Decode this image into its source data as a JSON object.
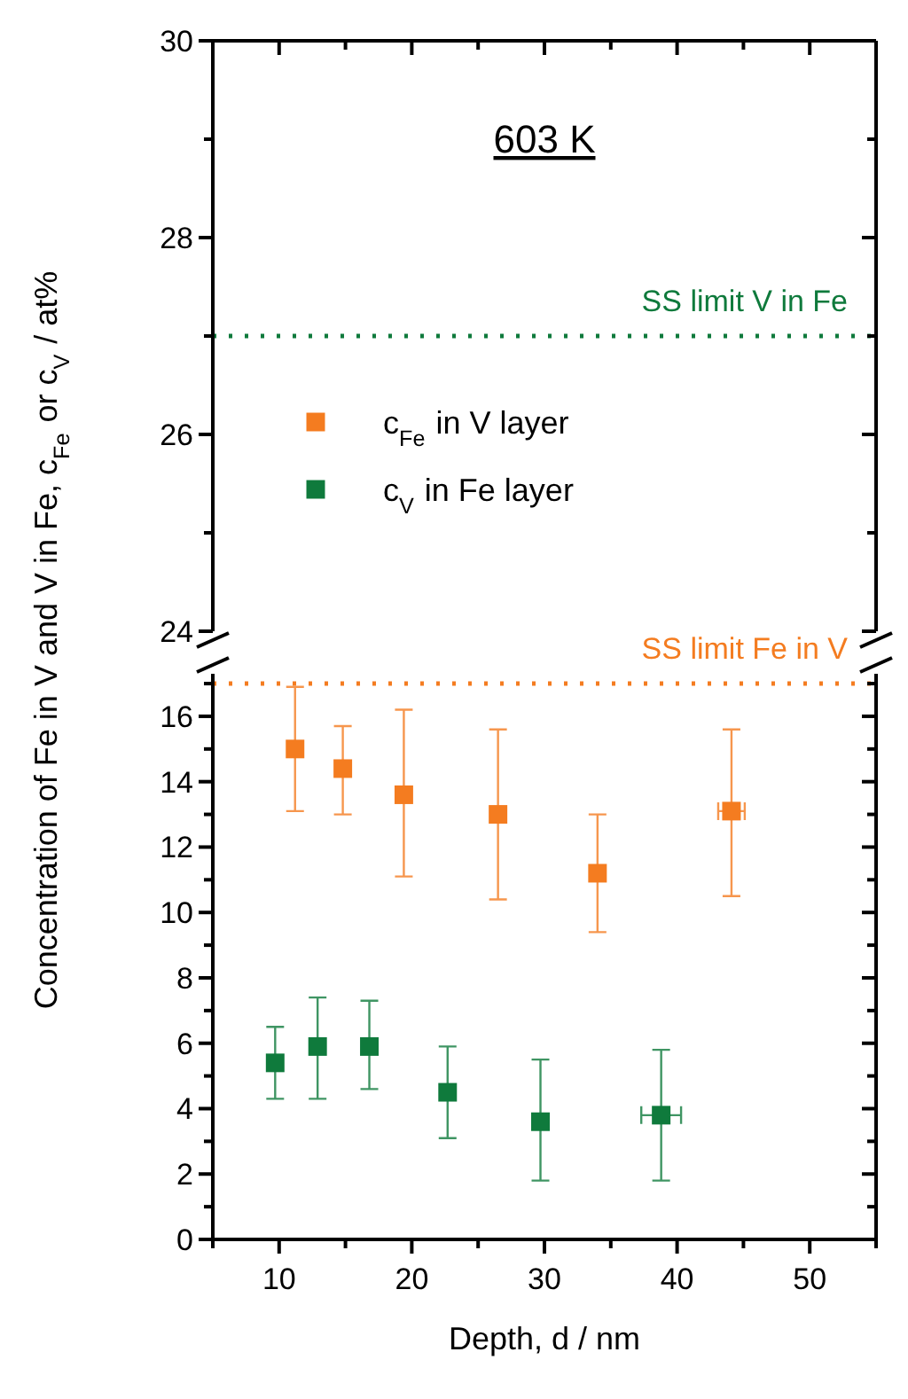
{
  "chart_data": [
    {
      "type": "scatter",
      "title": "603 K",
      "xlim": [
        5,
        55
      ],
      "xticks": [
        {
          "value": 5,
          "label": null
        },
        {
          "value": 10,
          "label": null
        },
        {
          "value": 15,
          "label": null
        },
        {
          "value": 20,
          "label": null
        },
        {
          "value": 25,
          "label": null
        },
        {
          "value": 30,
          "label": null
        },
        {
          "value": 35,
          "label": null
        },
        {
          "value": 40,
          "label": null
        },
        {
          "value": 45,
          "label": null
        },
        {
          "value": 50,
          "label": null
        },
        {
          "value": 55,
          "label": null
        }
      ],
      "ylim": [
        24,
        30
      ],
      "yticks": [
        24,
        {
          "value": 25,
          "label": null
        },
        26,
        {
          "value": 27,
          "label": null
        },
        28,
        {
          "value": 29,
          "label": null
        },
        30
      ],
      "tick_labels": "y",
      "ref_lines": [
        {
          "axis": "y",
          "value": 27,
          "label": "SS limit V in Fe",
          "color": "#0f7a3c",
          "line_style": "dotted"
        }
      ]
    },
    {
      "type": "scatter",
      "xlabel": "Depth, d / nm",
      "ylabel": "Concentration of Fe in V and V in Fe, c$_{Fe}$ or c$_{V}$ / at%",
      "xlim": [
        5,
        55
      ],
      "xticks": [
        {
          "value": 5,
          "label": null
        },
        10,
        {
          "value": 15,
          "label": null
        },
        20,
        {
          "value": 25,
          "label": null
        },
        30,
        {
          "value": 35,
          "label": null
        },
        40,
        {
          "value": 45,
          "label": null
        },
        50,
        {
          "value": 55,
          "label": null
        }
      ],
      "ylim": [
        0,
        17.3
      ],
      "yticks": [
        0,
        {
          "value": 1,
          "label": null
        },
        2,
        {
          "value": 3,
          "label": null
        },
        4,
        {
          "value": 5,
          "label": null
        },
        6,
        {
          "value": 7,
          "label": null
        },
        8,
        {
          "value": 9,
          "label": null
        },
        10,
        {
          "value": 11,
          "label": null
        },
        12,
        {
          "value": 13,
          "label": null
        },
        14,
        {
          "value": 15,
          "label": null
        },
        16,
        {
          "value": 17,
          "label": null
        }
      ],
      "marker": "square",
      "legend": "top left",
      "ref_lines": [
        {
          "axis": "y",
          "value": 17,
          "label": "SS limit Fe in V",
          "color": "#f47c20",
          "line_style": "dotted"
        }
      ],
      "series": [
        {
          "name": "c$_{Fe}$ in V layer",
          "color": "#f47c20",
          "x": [
            11.2,
            14.8,
            19.4,
            26.5,
            34.0,
            44.1
          ],
          "values": [
            15.0,
            14.4,
            13.6,
            13.0,
            11.2,
            13.1
          ],
          "errors": [
            [
              13.1,
              16.9
            ],
            [
              13.0,
              15.7
            ],
            [
              11.1,
              16.2
            ],
            [
              10.4,
              15.6
            ],
            [
              9.4,
              13.0
            ],
            [
              10.5,
              15.6
            ]
          ],
          "xerrors": [
            null,
            null,
            null,
            null,
            null,
            1.0
          ]
        },
        {
          "name": "c$_{V}$ in Fe layer",
          "color": "#0f7a3c",
          "x": [
            9.7,
            12.9,
            16.8,
            22.7,
            29.7,
            38.8
          ],
          "values": [
            5.4,
            5.9,
            5.9,
            4.5,
            3.6,
            3.8
          ],
          "errors": [
            [
              4.3,
              6.5
            ],
            [
              4.3,
              7.4
            ],
            [
              4.6,
              7.3
            ],
            [
              3.1,
              5.9
            ],
            [
              1.8,
              5.5
            ],
            [
              1.8,
              5.8
            ]
          ],
          "xerrors": [
            null,
            null,
            null,
            null,
            null,
            1.5
          ]
        }
      ]
    }
  ]
}
